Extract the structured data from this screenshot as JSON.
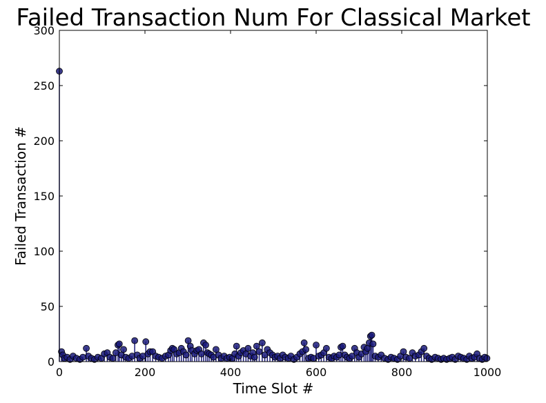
{
  "chart_data": {
    "type": "scatter",
    "title": "Failed Transaction Num For Classical Market",
    "xlabel": "Time Slot #",
    "ylabel": "Failed Transaction #",
    "xlim": [
      0,
      1000
    ],
    "ylim": [
      0,
      300
    ],
    "xticks": [
      0,
      200,
      400,
      600,
      800,
      1000
    ],
    "yticks": [
      0,
      50,
      100,
      150,
      200,
      250,
      300
    ],
    "grid": false,
    "stem_lines": true,
    "marker_color": "#1a1a7a",
    "series": [
      {
        "points": [
          [
            0,
            263
          ],
          [
            5,
            9
          ],
          [
            8,
            6
          ],
          [
            12,
            3
          ],
          [
            18,
            4
          ],
          [
            25,
            2
          ],
          [
            32,
            5
          ],
          [
            40,
            3
          ],
          [
            48,
            2
          ],
          [
            55,
            4
          ],
          [
            63,
            12
          ],
          [
            68,
            5
          ],
          [
            75,
            3
          ],
          [
            82,
            2
          ],
          [
            90,
            4
          ],
          [
            98,
            3
          ],
          [
            105,
            7
          ],
          [
            112,
            8
          ],
          [
            118,
            4
          ],
          [
            125,
            3
          ],
          [
            132,
            8
          ],
          [
            137,
            15
          ],
          [
            140,
            16
          ],
          [
            145,
            6
          ],
          [
            150,
            11
          ],
          [
            155,
            4
          ],
          [
            162,
            3
          ],
          [
            170,
            5
          ],
          [
            176,
            19
          ],
          [
            182,
            6
          ],
          [
            188,
            3
          ],
          [
            195,
            5
          ],
          [
            202,
            18
          ],
          [
            207,
            7
          ],
          [
            212,
            9
          ],
          [
            218,
            9
          ],
          [
            225,
            5
          ],
          [
            232,
            4
          ],
          [
            240,
            3
          ],
          [
            248,
            5
          ],
          [
            255,
            6
          ],
          [
            260,
            10
          ],
          [
            264,
            12
          ],
          [
            268,
            11
          ],
          [
            274,
            7
          ],
          [
            280,
            8
          ],
          [
            285,
            12
          ],
          [
            290,
            9
          ],
          [
            296,
            6
          ],
          [
            301,
            19
          ],
          [
            306,
            14
          ],
          [
            310,
            10
          ],
          [
            316,
            7
          ],
          [
            321,
            10
          ],
          [
            326,
            11
          ],
          [
            332,
            7
          ],
          [
            337,
            17
          ],
          [
            342,
            15
          ],
          [
            346,
            8
          ],
          [
            350,
            7
          ],
          [
            355,
            6
          ],
          [
            360,
            4
          ],
          [
            366,
            11
          ],
          [
            372,
            6
          ],
          [
            378,
            3
          ],
          [
            385,
            5
          ],
          [
            392,
            3
          ],
          [
            398,
            4
          ],
          [
            404,
            3
          ],
          [
            410,
            7
          ],
          [
            414,
            14
          ],
          [
            419,
            5
          ],
          [
            424,
            8
          ],
          [
            430,
            10
          ],
          [
            436,
            7
          ],
          [
            441,
            12
          ],
          [
            447,
            5
          ],
          [
            452,
            8
          ],
          [
            456,
            4
          ],
          [
            461,
            14
          ],
          [
            467,
            9
          ],
          [
            474,
            17
          ],
          [
            480,
            6
          ],
          [
            486,
            11
          ],
          [
            492,
            8
          ],
          [
            498,
            6
          ],
          [
            504,
            4
          ],
          [
            510,
            5
          ],
          [
            516,
            3
          ],
          [
            522,
            6
          ],
          [
            528,
            4
          ],
          [
            535,
            3
          ],
          [
            541,
            5
          ],
          [
            548,
            2
          ],
          [
            555,
            4
          ],
          [
            562,
            7
          ],
          [
            568,
            9
          ],
          [
            572,
            17
          ],
          [
            576,
            11
          ],
          [
            582,
            3
          ],
          [
            588,
            4
          ],
          [
            594,
            3
          ],
          [
            600,
            15
          ],
          [
            606,
            5
          ],
          [
            612,
            6
          ],
          [
            618,
            8
          ],
          [
            624,
            12
          ],
          [
            630,
            4
          ],
          [
            636,
            3
          ],
          [
            642,
            5
          ],
          [
            648,
            4
          ],
          [
            654,
            6
          ],
          [
            658,
            13
          ],
          [
            662,
            14
          ],
          [
            667,
            6
          ],
          [
            672,
            4
          ],
          [
            678,
            3
          ],
          [
            684,
            5
          ],
          [
            690,
            12
          ],
          [
            695,
            8
          ],
          [
            700,
            4
          ],
          [
            706,
            7
          ],
          [
            712,
            13
          ],
          [
            716,
            9
          ],
          [
            720,
            12
          ],
          [
            724,
            17
          ],
          [
            727,
            23
          ],
          [
            730,
            24
          ],
          [
            733,
            16
          ],
          [
            738,
            5
          ],
          [
            745,
            4
          ],
          [
            752,
            6
          ],
          [
            760,
            3
          ],
          [
            768,
            2
          ],
          [
            775,
            4
          ],
          [
            782,
            3
          ],
          [
            790,
            2
          ],
          [
            797,
            5
          ],
          [
            804,
            9
          ],
          [
            810,
            4
          ],
          [
            818,
            3
          ],
          [
            825,
            8
          ],
          [
            832,
            5
          ],
          [
            840,
            6
          ],
          [
            846,
            9
          ],
          [
            852,
            12
          ],
          [
            858,
            5
          ],
          [
            864,
            3
          ],
          [
            870,
            2
          ],
          [
            878,
            4
          ],
          [
            885,
            3
          ],
          [
            892,
            2
          ],
          [
            898,
            3
          ],
          [
            905,
            2
          ],
          [
            912,
            3
          ],
          [
            918,
            4
          ],
          [
            925,
            2
          ],
          [
            932,
            5
          ],
          [
            938,
            4
          ],
          [
            945,
            3
          ],
          [
            952,
            2
          ],
          [
            958,
            5
          ],
          [
            964,
            3
          ],
          [
            970,
            4
          ],
          [
            976,
            7
          ],
          [
            982,
            3
          ],
          [
            988,
            2
          ],
          [
            994,
            4
          ],
          [
            999,
            3
          ]
        ]
      }
    ]
  }
}
